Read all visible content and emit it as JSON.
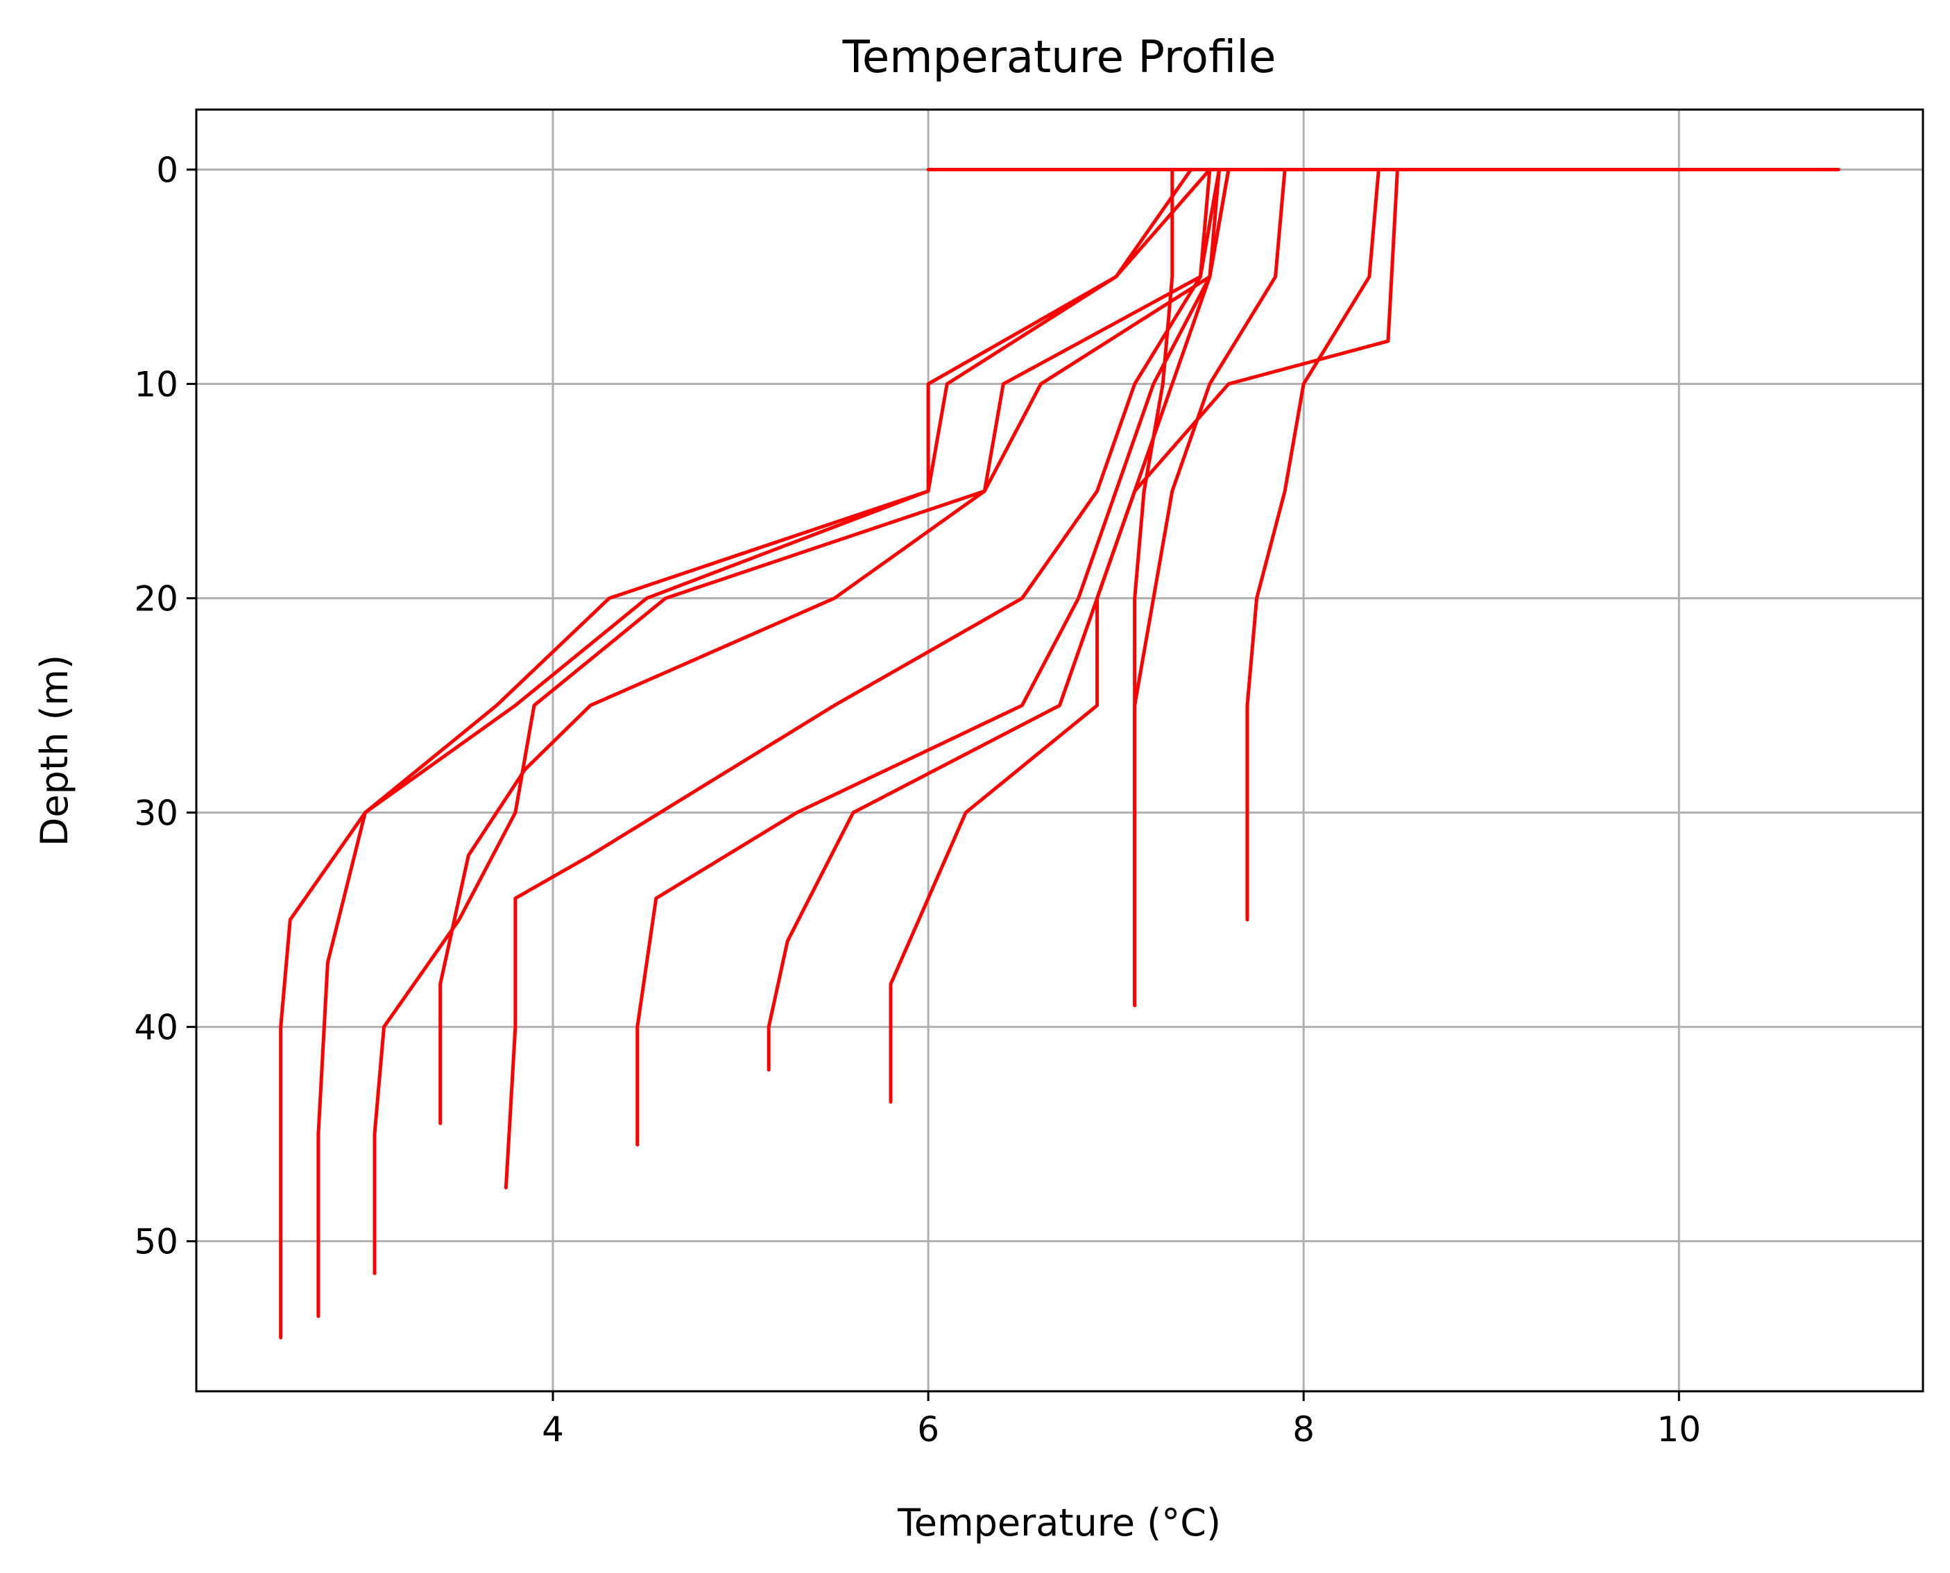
{
  "chart_data": {
    "type": "line",
    "title": "Temperature Profile",
    "xlabel": "Temperature (°C)",
    "ylabel": "Depth (m)",
    "xlim": [
      2.1,
      11.3
    ],
    "ylim": [
      57,
      -2.8
    ],
    "y_inverted": true,
    "grid": true,
    "x_ticks": [
      4,
      6,
      8,
      10
    ],
    "y_ticks": [
      0,
      10,
      20,
      30,
      40,
      50
    ],
    "x_tick_labels": [
      "4",
      "6",
      "8",
      "10"
    ],
    "y_tick_labels": [
      "0",
      "10",
      "20",
      "30",
      "40",
      "50"
    ],
    "line_color": "#ff0000",
    "series": [
      {
        "x": [
          7.3,
          7.3,
          7.25,
          7.15,
          7.1,
          7.1,
          7.1
        ],
        "y": [
          0,
          5,
          10,
          15,
          20,
          25,
          39
        ]
      },
      {
        "x": [
          7.9,
          7.85,
          7.5,
          7.3,
          7.2,
          7.1,
          7.1
        ],
        "y": [
          0,
          5,
          10,
          15,
          20,
          25,
          39
        ]
      },
      {
        "x": [
          8.4,
          8.35,
          8.0,
          7.9,
          7.75,
          7.7,
          7.7
        ],
        "y": [
          0,
          5,
          10,
          15,
          20,
          25,
          35
        ]
      },
      {
        "x": [
          8.5,
          8.45,
          7.6,
          7.1,
          6.9,
          6.9,
          6.2,
          5.8,
          5.8
        ],
        "y": [
          0,
          8,
          10,
          15,
          20,
          25,
          30,
          38,
          43.5
        ]
      },
      {
        "x": [
          7.6,
          7.5,
          7.3,
          7.1,
          6.9,
          6.7,
          5.6,
          5.25,
          5.15,
          5.15
        ],
        "y": [
          0,
          5,
          10,
          15,
          20,
          25,
          30,
          36,
          40,
          42
        ]
      },
      {
        "x": [
          7.55,
          7.5,
          7.2,
          7.0,
          6.8,
          6.5,
          5.3,
          4.55,
          4.45,
          4.45
        ],
        "y": [
          0,
          5,
          10,
          15,
          20,
          25,
          30,
          34,
          40,
          45.5
        ]
      },
      {
        "x": [
          7.5,
          7.45,
          7.1,
          6.9,
          6.5,
          5.5,
          4.2,
          3.8,
          3.8,
          3.75
        ],
        "y": [
          0,
          5,
          10,
          15,
          20,
          25,
          32,
          34,
          40,
          47.5
        ]
      },
      {
        "x": [
          7.6,
          7.5,
          6.6,
          6.3,
          5.5,
          4.2,
          3.85,
          3.55,
          3.4,
          3.4
        ],
        "y": [
          0,
          5,
          10,
          15,
          20,
          25,
          28,
          32,
          38,
          44.5
        ]
      },
      {
        "x": [
          7.55,
          7.45,
          6.4,
          6.3,
          4.6,
          3.9,
          3.8,
          3.5,
          3.1,
          3.05,
          3.05
        ],
        "y": [
          0,
          5,
          10,
          15,
          20,
          25,
          30,
          35,
          40,
          45,
          51.5
        ]
      },
      {
        "x": [
          7.5,
          7.0,
          6.1,
          6.0,
          4.3,
          3.7,
          3.0,
          2.8,
          2.75,
          2.75
        ],
        "y": [
          0,
          5,
          10,
          15,
          20,
          25,
          30,
          37,
          45,
          53.5
        ]
      },
      {
        "x": [
          7.4,
          7.0,
          6.0,
          6.0,
          4.5,
          3.8,
          3.0,
          2.6,
          2.55,
          2.55
        ],
        "y": [
          0,
          5,
          10,
          15,
          20,
          25,
          30,
          35,
          40,
          54.5
        ]
      },
      {
        "x": [
          6.0,
          7.3,
          7.6,
          7.9,
          8.5,
          10.2,
          10.85
        ],
        "y": [
          0,
          0,
          0,
          0,
          0,
          0,
          0
        ]
      }
    ]
  }
}
